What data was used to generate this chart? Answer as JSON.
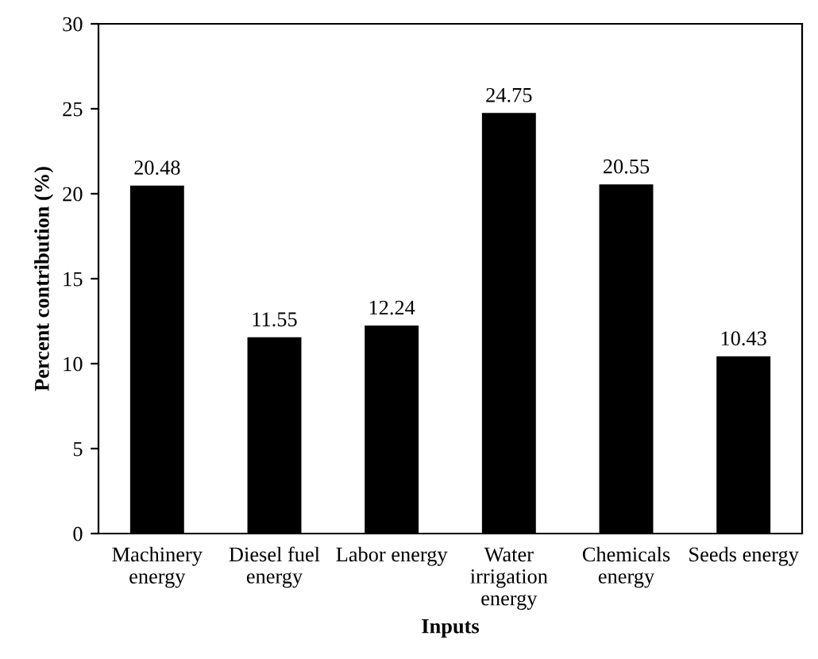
{
  "chart_data": {
    "type": "bar",
    "xlabel": "Inputs",
    "ylabel": "Percent contribution (%)",
    "categories": [
      "Machinery\nenergy",
      "Diesel fuel\nenergy",
      "Labor energy",
      "Water\nirrigation\nenergy",
      "Chemicals\nenergy",
      "Seeds energy"
    ],
    "values": [
      20.48,
      11.55,
      12.24,
      24.75,
      20.55,
      10.43
    ],
    "color": "#000000",
    "ylim": [
      0,
      30
    ],
    "yticks": [
      0,
      5,
      10,
      15,
      20,
      25,
      30
    ],
    "data_labels": true,
    "grid": false,
    "legend": false
  }
}
